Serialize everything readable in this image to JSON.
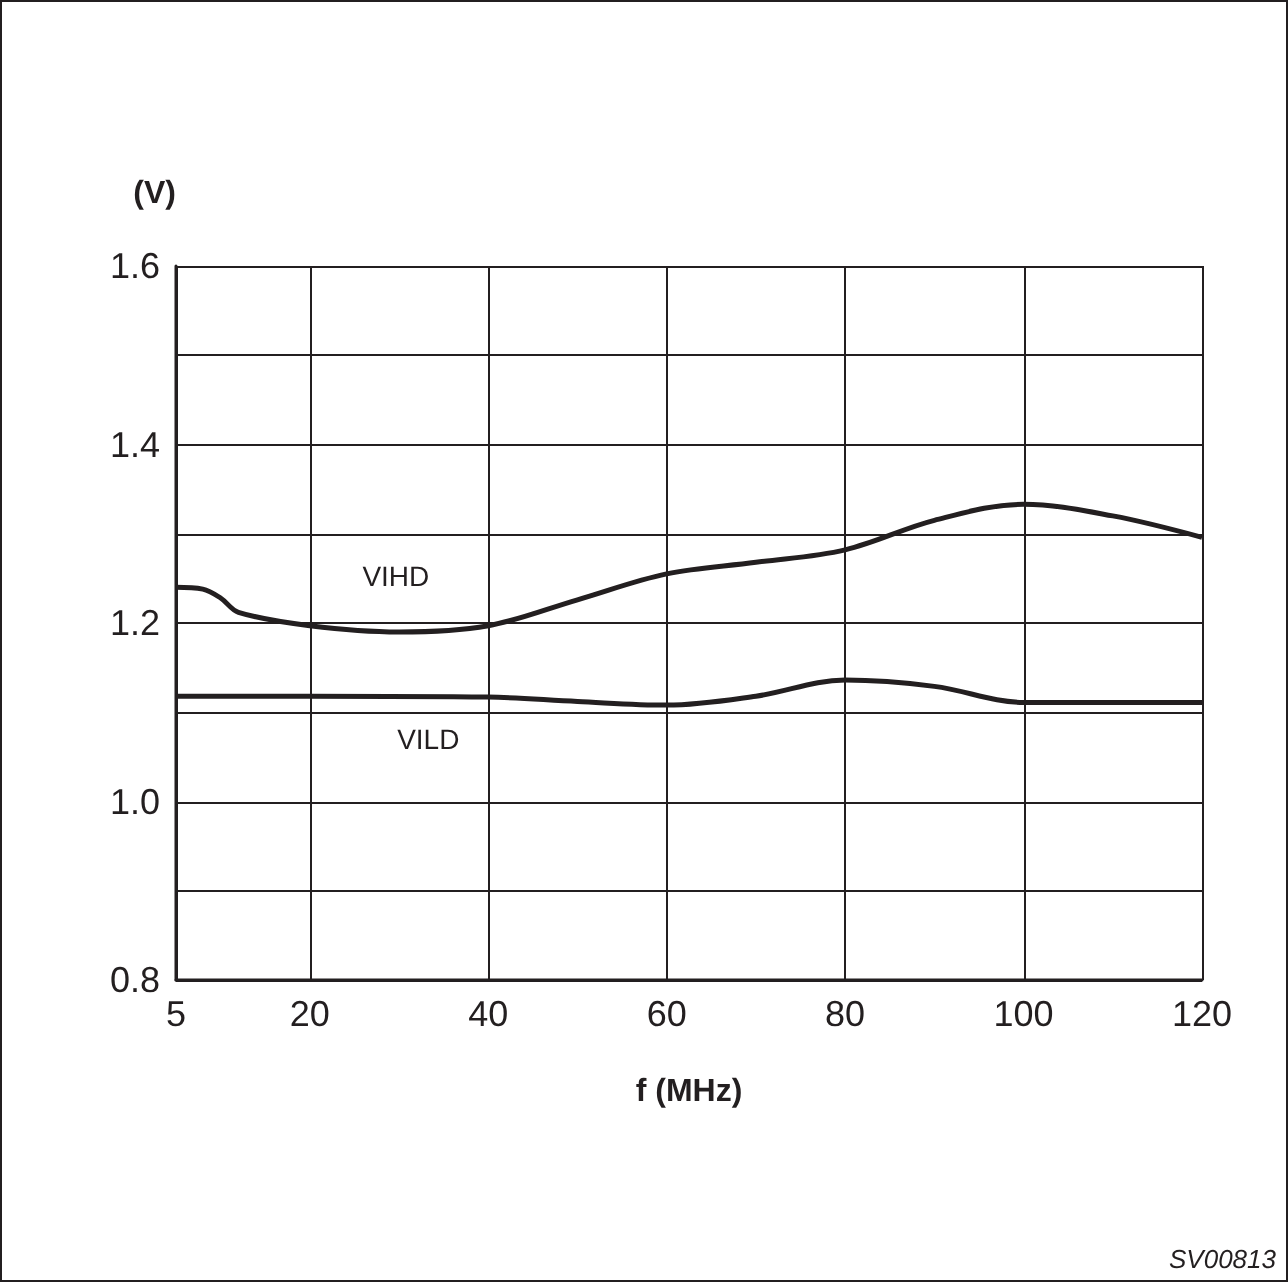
{
  "chart_data": {
    "type": "line",
    "xlabel": "f (MHz)",
    "ylabel": "(V)",
    "xlim": [
      5,
      120
    ],
    "xticks": [
      5,
      20,
      40,
      60,
      80,
      100,
      120
    ],
    "ylim": [
      0.8,
      1.6
    ],
    "yticks": [
      0.8,
      {
        "value": 0.9,
        "label": null
      },
      "1.0",
      {
        "value": 1.1,
        "label": null
      },
      1.2,
      {
        "value": 1.3,
        "label": null
      },
      1.4,
      {
        "value": 1.5,
        "label": null
      },
      1.6
    ],
    "grid": true,
    "marker": "none",
    "line_style": "solid",
    "series": [
      {
        "name": "VIHD",
        "color": "#231f20",
        "x": [
          5,
          8,
          10,
          12,
          20,
          30,
          40,
          50,
          60,
          70,
          80,
          90,
          100,
          110,
          120
        ],
        "values": [
          1.24,
          1.238,
          1.228,
          1.212,
          1.197,
          1.19,
          1.197,
          1.226,
          1.255,
          1.268,
          1.282,
          1.315,
          1.333,
          1.32,
          1.296
        ]
      },
      {
        "name": "VILD",
        "color": "#231f20",
        "x": [
          5,
          20,
          40,
          50,
          60,
          70,
          80,
          90,
          100,
          110,
          120
        ],
        "values": [
          1.118,
          1.118,
          1.117,
          1.112,
          1.108,
          1.118,
          1.136,
          1.129,
          1.111,
          1.111,
          1.111
        ]
      }
    ],
    "annotations": [
      "SV00813"
    ]
  }
}
